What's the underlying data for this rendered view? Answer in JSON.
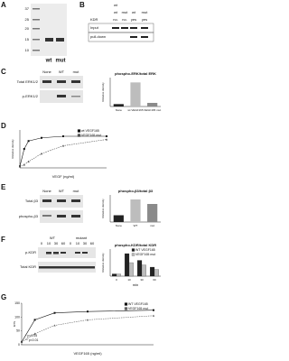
{
  "figure": {
    "A": {
      "label": "A",
      "markers": [
        "37",
        "25",
        "20",
        "15",
        "10"
      ],
      "lanes": [
        "wt",
        "mut"
      ]
    },
    "B": {
      "label": "B",
      "columns": [
        "wt",
        "mut"
      ],
      "kdr": [
        "KDR",
        "no.",
        "no.",
        "yes",
        "yes"
      ],
      "rows": [
        "Input",
        "pull-down"
      ]
    },
    "C": {
      "label": "C",
      "lanes": [
        "None",
        "WT",
        "mut"
      ],
      "rows": [
        "Total ERK1/2",
        "p-ERK1/2"
      ]
    },
    "D": {
      "label": "D"
    },
    "E": {
      "label": "E",
      "lanes": [
        "None",
        "WT",
        "mut"
      ],
      "rows": [
        "Total β3",
        "phospho-β3"
      ]
    },
    "F": {
      "label": "F",
      "groups": [
        "WT",
        "mutant"
      ],
      "times": [
        "0",
        "10",
        "30",
        "60",
        "0",
        "10",
        "30",
        "60"
      ],
      "rows": [
        "p-KDR",
        "Total KDR"
      ]
    },
    "G": {
      "label": "G"
    }
  },
  "chart_data": [
    {
      "type": "bar",
      "title": "phospho-ERK/total ERK",
      "ylabel": "Relative density",
      "categories": [
        "None",
        "wt VEGF165",
        "VEGF165 mut"
      ],
      "values": [
        0.1,
        1.0,
        0.15
      ],
      "colors": [
        "#222222",
        "#bdbdbd",
        "#8a8a8a"
      ],
      "ylim": [
        0,
        1.2
      ]
    },
    {
      "type": "line",
      "ylabel": "Relative density",
      "xlabel": "VEGF (ng/ml)",
      "x": [
        0,
        1,
        2,
        5,
        10,
        20
      ],
      "xlim": [
        0,
        20
      ],
      "ylim": [
        0,
        1.2
      ],
      "series": [
        {
          "name": "wt VEGF165",
          "color": "#111111",
          "values": [
            0.05,
            0.6,
            0.85,
            0.95,
            1.0,
            1.0
          ]
        },
        {
          "name": "VEGF165 mut",
          "color": "#555555",
          "values": [
            0.05,
            0.1,
            0.2,
            0.45,
            0.7,
            0.9
          ]
        }
      ]
    },
    {
      "type": "bar",
      "title": "phospho-β3/total β3",
      "ylabel": "Relative density",
      "categories": [
        "None",
        "WT",
        "mut"
      ],
      "values": [
        0.3,
        1.0,
        0.8
      ],
      "colors": [
        "#222222",
        "#bdbdbd",
        "#8a8a8a"
      ],
      "ylim": [
        0,
        1.2
      ]
    },
    {
      "type": "bar",
      "title": "phospho-KDR/total KDR",
      "ylabel": "Relative density",
      "xlabel": "min",
      "categories": [
        "0",
        "10",
        "30",
        "60"
      ],
      "ylim": [
        0,
        1.2
      ],
      "series": [
        {
          "name": "WT VEGF165",
          "color": "#222222",
          "values": [
            0.1,
            1.0,
            0.7,
            0.4
          ]
        },
        {
          "name": "VEGF165 mut",
          "color": "#bdbdbd",
          "values": [
            0.1,
            0.6,
            0.5,
            0.3
          ]
        }
      ]
    },
    {
      "type": "line",
      "ylabel": "MTS",
      "xlabel": "VEGF165 (ng/ml)",
      "x": [
        0,
        10,
        25,
        50,
        100
      ],
      "xlim": [
        0,
        100
      ],
      "ylim": [
        0,
        150
      ],
      "yticks": [
        0,
        50,
        100,
        150
      ],
      "annotations": [
        "* p<0.05",
        "** p<0.01"
      ],
      "series": [
        {
          "name": "WT VEGF165",
          "color": "#111111",
          "values": [
            10,
            90,
            115,
            120,
            125
          ]
        },
        {
          "name": "VEGF165 mut",
          "color": "#666666",
          "values": [
            10,
            40,
            70,
            90,
            105
          ]
        }
      ]
    }
  ]
}
